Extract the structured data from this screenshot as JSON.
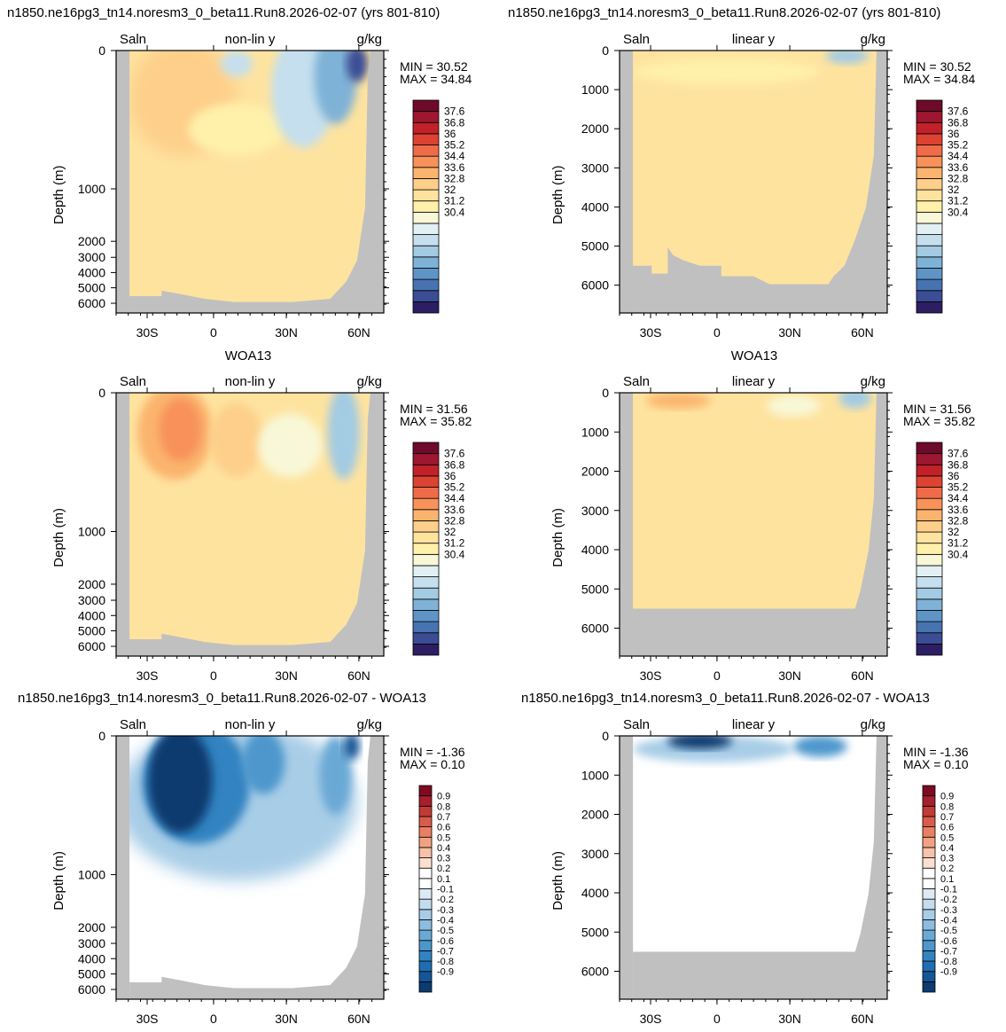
{
  "figure": {
    "row_titles": [
      {
        "left": "n1850.ne16pg3_tn14.noresm3_0_beta11.Run8.2026-02-07 (yrs 801-810)",
        "right": "n1850.ne16pg3_tn14.noresm3_0_beta11.Run8.2026-02-07 (yrs 801-810)"
      },
      {
        "left": "WOA13",
        "right": "WOA13"
      },
      {
        "left": "n1850.ne16pg3_tn14.noresm3_0_beta11.Run8.2026-02-07 - WOA13",
        "right": "n1850.ne16pg3_tn14.noresm3_0_beta11.Run8.2026-02-07 - WOA13"
      }
    ]
  },
  "colors": {
    "land": "#c0c0c0",
    "salinity_palette": [
      "#2d1e63",
      "#3b4d94",
      "#4873b1",
      "#5f95c6",
      "#7fb2d7",
      "#a3cbe3",
      "#c5dfee",
      "#e3f0f3",
      "#f8f8d8",
      "#fff0aa",
      "#fee39f",
      "#fdcf8a",
      "#fbb46d",
      "#f8925a",
      "#ef6b4a",
      "#dc4332",
      "#c22129",
      "#9d1730",
      "#6e0a2a"
    ],
    "diff_palette": [
      "#0b3b70",
      "#145698",
      "#1f6eb3",
      "#3383c1",
      "#4d97cd",
      "#6aa9d6",
      "#8bbde0",
      "#a8cde7",
      "#c4dcee",
      "#dde9f4",
      "#ffffff",
      "#ffffff",
      "#fbe0d1",
      "#f7c2a9",
      "#f2a283",
      "#e88064",
      "#d95c4a",
      "#c23a35",
      "#a51f2c",
      "#7f0a22"
    ]
  },
  "chart_data": [
    {
      "id": "model-nonlin",
      "type": "heatmap",
      "variable": "Saln",
      "scale_label": "non-lin y",
      "units": "g/kg",
      "ylabel": "Depth (m)",
      "y_ticks": [
        "0",
        "1000",
        "2000",
        "3000",
        "4000",
        "5000",
        "6000"
      ],
      "x_ticks": [
        "30S",
        "0",
        "30N",
        "60N"
      ],
      "min_label": "MIN =  30.52",
      "max_label": "MAX =  34.84",
      "colorbar_levels": [
        "37.6",
        "36.8",
        "36",
        "35.2",
        "34.4",
        "33.6",
        "32.8",
        "32",
        "31.2",
        "30.4"
      ]
    },
    {
      "id": "model-lin",
      "type": "heatmap",
      "variable": "Saln",
      "scale_label": "linear y",
      "units": "g/kg",
      "ylabel": "Depth (m)",
      "y_ticks": [
        "0",
        "1000",
        "2000",
        "3000",
        "4000",
        "5000",
        "6000"
      ],
      "x_ticks": [
        "30S",
        "0",
        "30N",
        "60N"
      ],
      "min_label": "MIN =  30.52",
      "max_label": "MAX =  34.84",
      "colorbar_levels": [
        "37.6",
        "36.8",
        "36",
        "35.2",
        "34.4",
        "33.6",
        "32.8",
        "32",
        "31.2",
        "30.4"
      ]
    },
    {
      "id": "woa-nonlin",
      "type": "heatmap",
      "variable": "Saln",
      "scale_label": "non-lin y",
      "units": "g/kg",
      "ylabel": "Depth (m)",
      "y_ticks": [
        "0",
        "1000",
        "2000",
        "3000",
        "4000",
        "5000",
        "6000"
      ],
      "x_ticks": [
        "30S",
        "0",
        "30N",
        "60N"
      ],
      "min_label": "MIN =  31.56",
      "max_label": "MAX =  35.82",
      "colorbar_levels": [
        "37.6",
        "36.8",
        "36",
        "35.2",
        "34.4",
        "33.6",
        "32.8",
        "32",
        "31.2",
        "30.4"
      ]
    },
    {
      "id": "woa-lin",
      "type": "heatmap",
      "variable": "Saln",
      "scale_label": "linear y",
      "units": "g/kg",
      "ylabel": "Depth (m)",
      "y_ticks": [
        "0",
        "1000",
        "2000",
        "3000",
        "4000",
        "5000",
        "6000"
      ],
      "x_ticks": [
        "30S",
        "0",
        "30N",
        "60N"
      ],
      "min_label": "MIN =  31.56",
      "max_label": "MAX =  35.82",
      "colorbar_levels": [
        "37.6",
        "36.8",
        "36",
        "35.2",
        "34.4",
        "33.6",
        "32.8",
        "32",
        "31.2",
        "30.4"
      ]
    },
    {
      "id": "diff-nonlin",
      "type": "heatmap",
      "variable": "Saln",
      "scale_label": "non-lin y",
      "units": "g/kg",
      "ylabel": "Depth (m)",
      "y_ticks": [
        "0",
        "1000",
        "2000",
        "3000",
        "4000",
        "5000",
        "6000"
      ],
      "x_ticks": [
        "30S",
        "0",
        "30N",
        "60N"
      ],
      "min_label": "MIN =  -1.36",
      "max_label": "MAX =   0.10",
      "colorbar_levels": [
        "0.9",
        "0.8",
        "0.7",
        "0.6",
        "0.5",
        "0.4",
        "0.3",
        "0.2",
        "0.1",
        "-0.1",
        "-0.2",
        "-0.3",
        "-0.4",
        "-0.5",
        "-0.6",
        "-0.7",
        "-0.8",
        "-0.9"
      ]
    },
    {
      "id": "diff-lin",
      "type": "heatmap",
      "variable": "Saln",
      "scale_label": "linear y",
      "units": "g/kg",
      "ylabel": "Depth (m)",
      "y_ticks": [
        "0",
        "1000",
        "2000",
        "3000",
        "4000",
        "5000",
        "6000"
      ],
      "x_ticks": [
        "30S",
        "0",
        "30N",
        "60N"
      ],
      "min_label": "MIN =  -1.36",
      "max_label": "MAX =   0.10",
      "colorbar_levels": [
        "0.9",
        "0.8",
        "0.7",
        "0.6",
        "0.5",
        "0.4",
        "0.3",
        "0.2",
        "0.1",
        "-0.1",
        "-0.2",
        "-0.3",
        "-0.4",
        "-0.5",
        "-0.6",
        "-0.7",
        "-0.8",
        "-0.9"
      ]
    }
  ]
}
